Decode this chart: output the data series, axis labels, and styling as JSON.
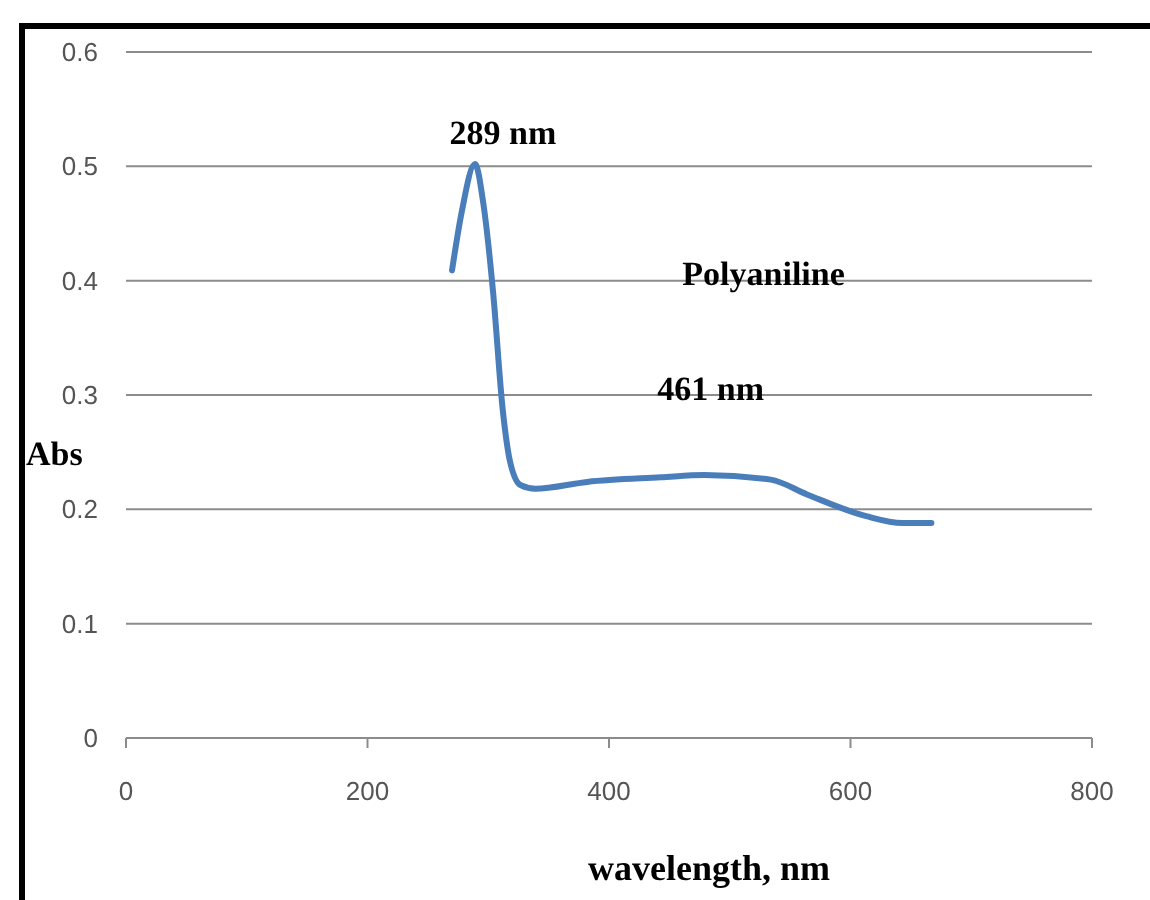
{
  "chart_data": {
    "type": "line",
    "xlabel": "wavelength, nm",
    "ylabel": "Abs",
    "xlim": [
      0,
      800
    ],
    "xticks": [
      0,
      200,
      400,
      600,
      800
    ],
    "ylim": [
      0,
      0.6
    ],
    "yticks": [
      0,
      0.1,
      0.2,
      0.3,
      0.4,
      0.5,
      0.6
    ],
    "grid": "y",
    "marker": "none",
    "line_style": "solid",
    "series": [
      {
        "name": "Polyaniline",
        "color": "#4a7ebb",
        "x": [
          270,
          278,
          289,
          296,
          304,
          312,
          318,
          327,
          339,
          382,
          443,
          479,
          534,
          564,
          613,
          643,
          667
        ],
        "values": [
          0.409,
          0.46,
          0.502,
          0.467,
          0.39,
          0.287,
          0.242,
          0.221,
          0.218,
          0.224,
          0.228,
          0.23,
          0.226,
          0.213,
          0.194,
          0.188,
          0.188
        ]
      }
    ],
    "annotations": [
      {
        "text": "289 nm",
        "x": 289,
        "y": 0.502
      },
      {
        "text": "461 nm",
        "x": 461,
        "y": 0.229
      }
    ]
  }
}
